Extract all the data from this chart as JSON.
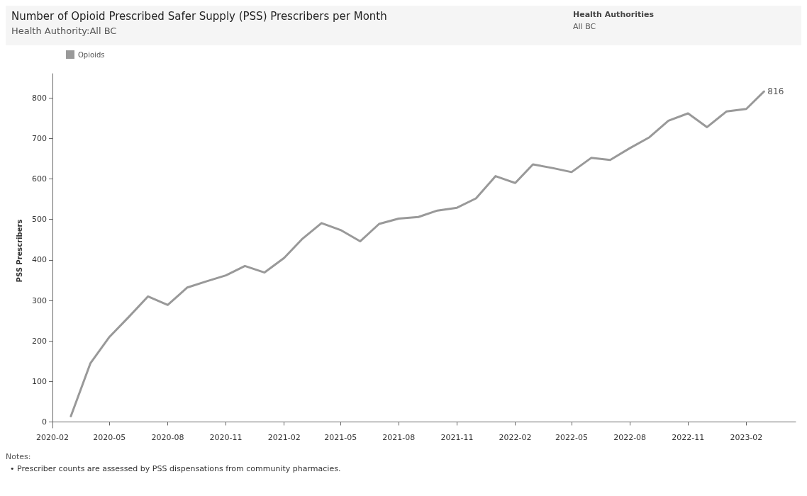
{
  "chart_data": {
    "type": "line",
    "title": "Number of Opioid Prescribed Safer Supply (PSS) Prescribers per Month",
    "subtitle": "Health Authority:All BC",
    "ylabel": "PSS Prescribers",
    "annotations": [
      "Health Authorities",
      "All BC",
      "Notes:",
      "• Prescriber counts are assessed by PSS dispensations from community pharmacies."
    ],
    "x": [
      "2020-03",
      "2020-04",
      "2020-05",
      "2020-06",
      "2020-07",
      "2020-08",
      "2020-09",
      "2020-10",
      "2020-11",
      "2020-12",
      "2021-01",
      "2021-02",
      "2021-03",
      "2021-04",
      "2021-05",
      "2021-06",
      "2021-07",
      "2021-08",
      "2021-09",
      "2021-10",
      "2021-11",
      "2021-12",
      "2022-01",
      "2022-02",
      "2022-03",
      "2022-04",
      "2022-05",
      "2022-06",
      "2022-07",
      "2022-08",
      "2022-09",
      "2022-10",
      "2022-11",
      "2022-12",
      "2023-01",
      "2023-02",
      "2023-03"
    ],
    "series": [
      {
        "name": "Opioids",
        "color": "#999999",
        "values": [
          14,
          145,
          210,
          260,
          310,
          289,
          332,
          347,
          362,
          385,
          369,
          405,
          451,
          491,
          474,
          446,
          489,
          502,
          506,
          522,
          529,
          552,
          607,
          590,
          636,
          627,
          617,
          652,
          647,
          676,
          703,
          744,
          762,
          728,
          767,
          773,
          816
        ],
        "value_labels": [
          null,
          null,
          null,
          null,
          null,
          null,
          null,
          null,
          null,
          null,
          null,
          null,
          null,
          null,
          null,
          null,
          null,
          null,
          null,
          null,
          null,
          null,
          null,
          null,
          null,
          null,
          null,
          null,
          null,
          null,
          null,
          null,
          null,
          null,
          null,
          null,
          "816"
        ]
      }
    ],
    "xlim": [
      "2020-02",
      "2023-04-20"
    ],
    "xticks": [
      "2020-02",
      "2020-05",
      "2020-08",
      "2020-11",
      "2021-02",
      "2021-05",
      "2021-08",
      "2021-11",
      "2022-02",
      "2022-05",
      "2022-08",
      "2022-11",
      "2023-02"
    ],
    "ylim": [
      -15,
      860
    ],
    "yticks": [
      0,
      100,
      200,
      300,
      400,
      500,
      600,
      700,
      800
    ],
    "grid": false,
    "legend": "top left",
    "marker": "none",
    "line_style": "solid"
  }
}
